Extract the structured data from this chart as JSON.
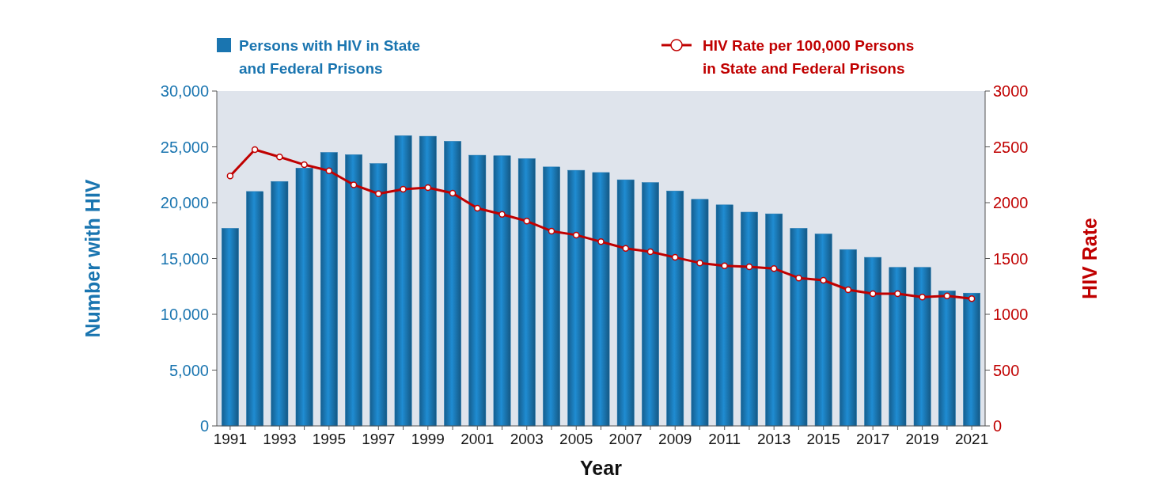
{
  "chart_data": {
    "type": "bar",
    "xlabel": "Year",
    "ylabel": "Number with HIV",
    "y2label": "HIV Rate",
    "categories": [
      "1991",
      null,
      "1993",
      null,
      "1995",
      null,
      "1997",
      null,
      "1999",
      null,
      "2001",
      null,
      "2003",
      null,
      "2005",
      null,
      "2007",
      null,
      "2009",
      null,
      "2011",
      null,
      "2013",
      null,
      "2015",
      null,
      "2017",
      null,
      "2019",
      null,
      "2021"
    ],
    "series": [
      {
        "name": "Persons with HIV in State and Federal Prisons",
        "color": "#1a75b0",
        "values": [
          17700,
          21000,
          21900,
          23100,
          24500,
          24300,
          23500,
          26000,
          25950,
          25500,
          24250,
          24200,
          23950,
          23200,
          22900,
          22700,
          22050,
          21800,
          21050,
          20300,
          19800,
          19150,
          19000,
          17700,
          17200,
          15800,
          15100,
          14200,
          14200,
          12100,
          11900
        ]
      },
      {
        "name": "HIV Rate per 100,000 Persons in State and Federal Prisons",
        "type": "line",
        "axis": "y2",
        "color": "#c00000",
        "marker": "circle",
        "values": [
          2240,
          2475,
          2410,
          2340,
          2285,
          2160,
          2080,
          2120,
          2135,
          2085,
          1950,
          1895,
          1835,
          1745,
          1710,
          1650,
          1590,
          1560,
          1510,
          1460,
          1435,
          1425,
          1410,
          1325,
          1305,
          1220,
          1185,
          1185,
          1155,
          1165,
          1140
        ]
      }
    ],
    "ylim": [
      0,
      30000
    ],
    "yticks": [
      {
        "value": 0,
        "label": "0"
      },
      {
        "value": 5000,
        "label": "5,000"
      },
      {
        "value": 10000,
        "label": "10,000"
      },
      {
        "value": 15000,
        "label": "15,000"
      },
      {
        "value": 20000,
        "label": "20,000"
      },
      {
        "value": 25000,
        "label": "25,000"
      },
      {
        "value": 30000,
        "label": "30,000"
      }
    ],
    "y2lim": [
      0,
      3000
    ],
    "y2ticks": [
      0,
      500,
      1000,
      1500,
      2000,
      2500,
      3000
    ],
    "legend": "top"
  }
}
